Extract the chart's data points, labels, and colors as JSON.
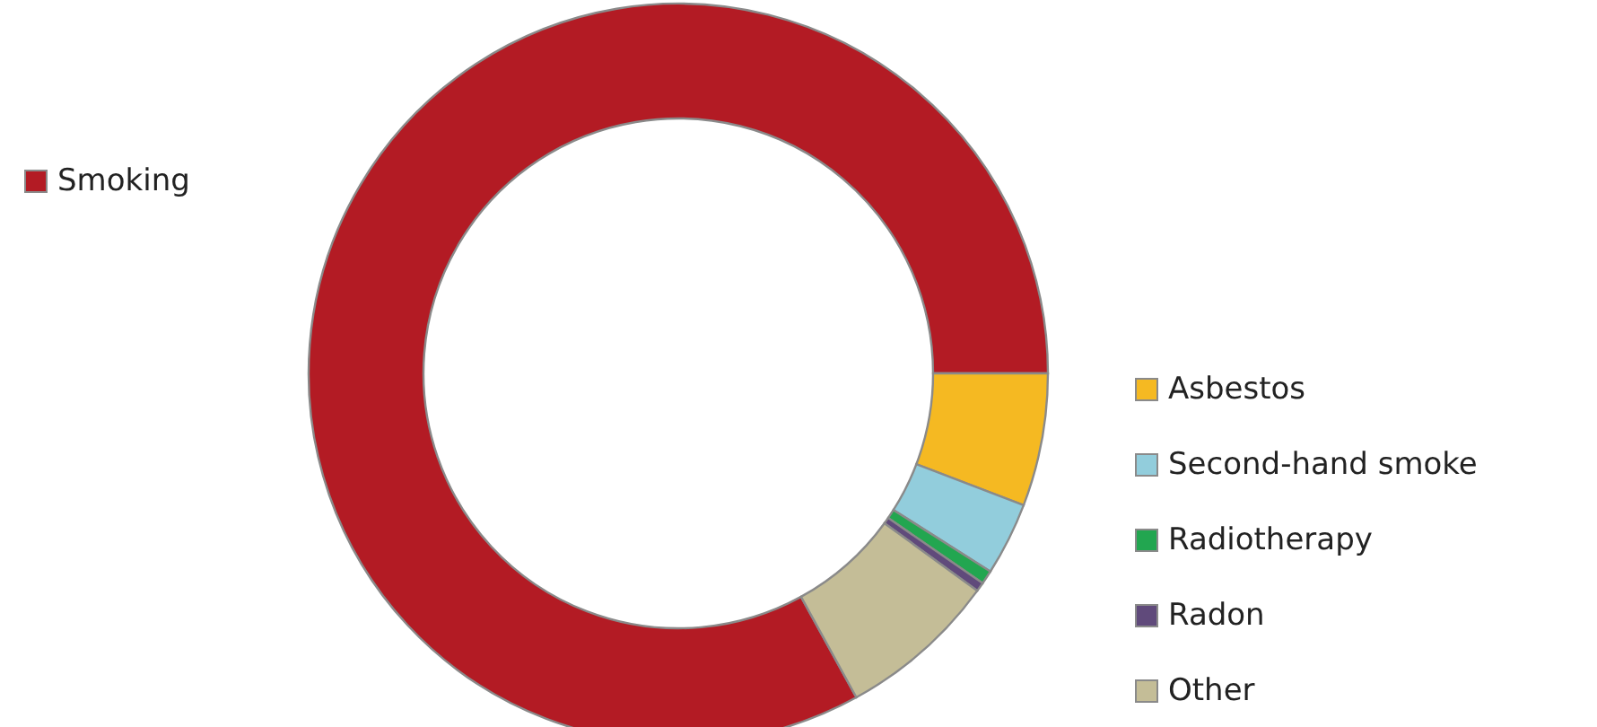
{
  "chart_data": {
    "type": "donut",
    "categories": [
      "Smoking",
      "Asbestos",
      "Second-hand smoke",
      "Radiotherapy",
      "Radon",
      "Other"
    ],
    "values": [
      83,
      5.8,
      3.2,
      0.6,
      0.4,
      7
    ],
    "colors": [
      "#b31b24",
      "#f5b922",
      "#92cddc",
      "#22a650",
      "#604a7b",
      "#c4bd97"
    ],
    "legend": "right"
  }
}
